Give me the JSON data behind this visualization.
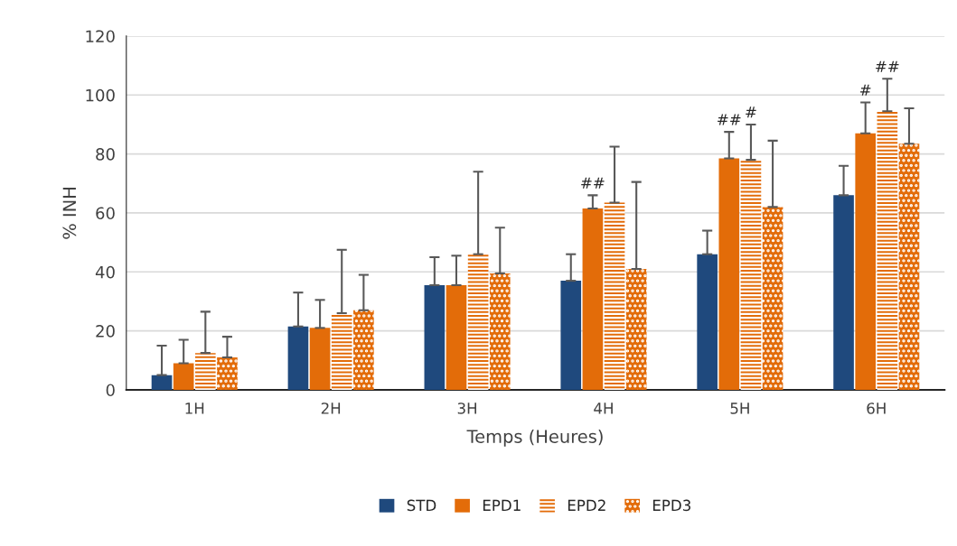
{
  "chart_data": {
    "type": "bar",
    "xlabel": "Temps (Heures)",
    "ylabel": "% INH",
    "categories": [
      "1H",
      "2H",
      "3H",
      "4H",
      "5H",
      "6H"
    ],
    "series": [
      {
        "name": "STD",
        "color": "#1f497d",
        "values": [
          5,
          21.5,
          35.5,
          37,
          46,
          66
        ],
        "errors": [
          [
            5,
            15
          ],
          [
            21.5,
            33
          ],
          [
            35.5,
            45
          ],
          [
            37,
            46
          ],
          [
            46,
            54
          ],
          [
            66,
            76
          ]
        ]
      },
      {
        "name": "EPD1",
        "color": "#e36c09",
        "values": [
          9,
          21,
          35.5,
          61.5,
          78.5,
          87
        ],
        "errors": [
          [
            9,
            17
          ],
          [
            21,
            30.5
          ],
          [
            35.5,
            45.5
          ],
          [
            61.5,
            66
          ],
          [
            78.5,
            87.5
          ],
          [
            87,
            97.5
          ]
        ]
      },
      {
        "name": "EPD2",
        "color": "#e36c09",
        "values": [
          12.5,
          26,
          46,
          63.5,
          78,
          94.5
        ],
        "errors": [
          [
            12.5,
            26.5
          ],
          [
            26,
            47.5
          ],
          [
            46,
            74
          ],
          [
            63.5,
            82.5
          ],
          [
            78,
            90
          ],
          [
            94.5,
            105.5
          ]
        ]
      },
      {
        "name": "EPD3",
        "color": "#e36c09",
        "values": [
          11,
          27,
          39.5,
          41,
          62,
          83.5
        ],
        "errors": [
          [
            11,
            18
          ],
          [
            27,
            39
          ],
          [
            39.5,
            55
          ],
          [
            41,
            70.5
          ],
          [
            62,
            84.5
          ],
          [
            83.5,
            95.5
          ]
        ]
      }
    ],
    "annotations": [
      {
        "text": "##",
        "x": "4H",
        "y": 61.5
      },
      {
        "text": "##",
        "x": "5H",
        "y": 78.5
      },
      {
        "text": "#",
        "x": "5H",
        "y": 78
      },
      {
        "text": "#",
        "x": "6H",
        "y": 87
      },
      {
        "text": "##",
        "x": "6H",
        "y": 94.5
      }
    ],
    "ylim": [
      0,
      120
    ],
    "yticks": [
      0,
      20,
      40,
      60,
      80,
      100,
      120
    ],
    "grid": "y",
    "legend": "bottom"
  }
}
